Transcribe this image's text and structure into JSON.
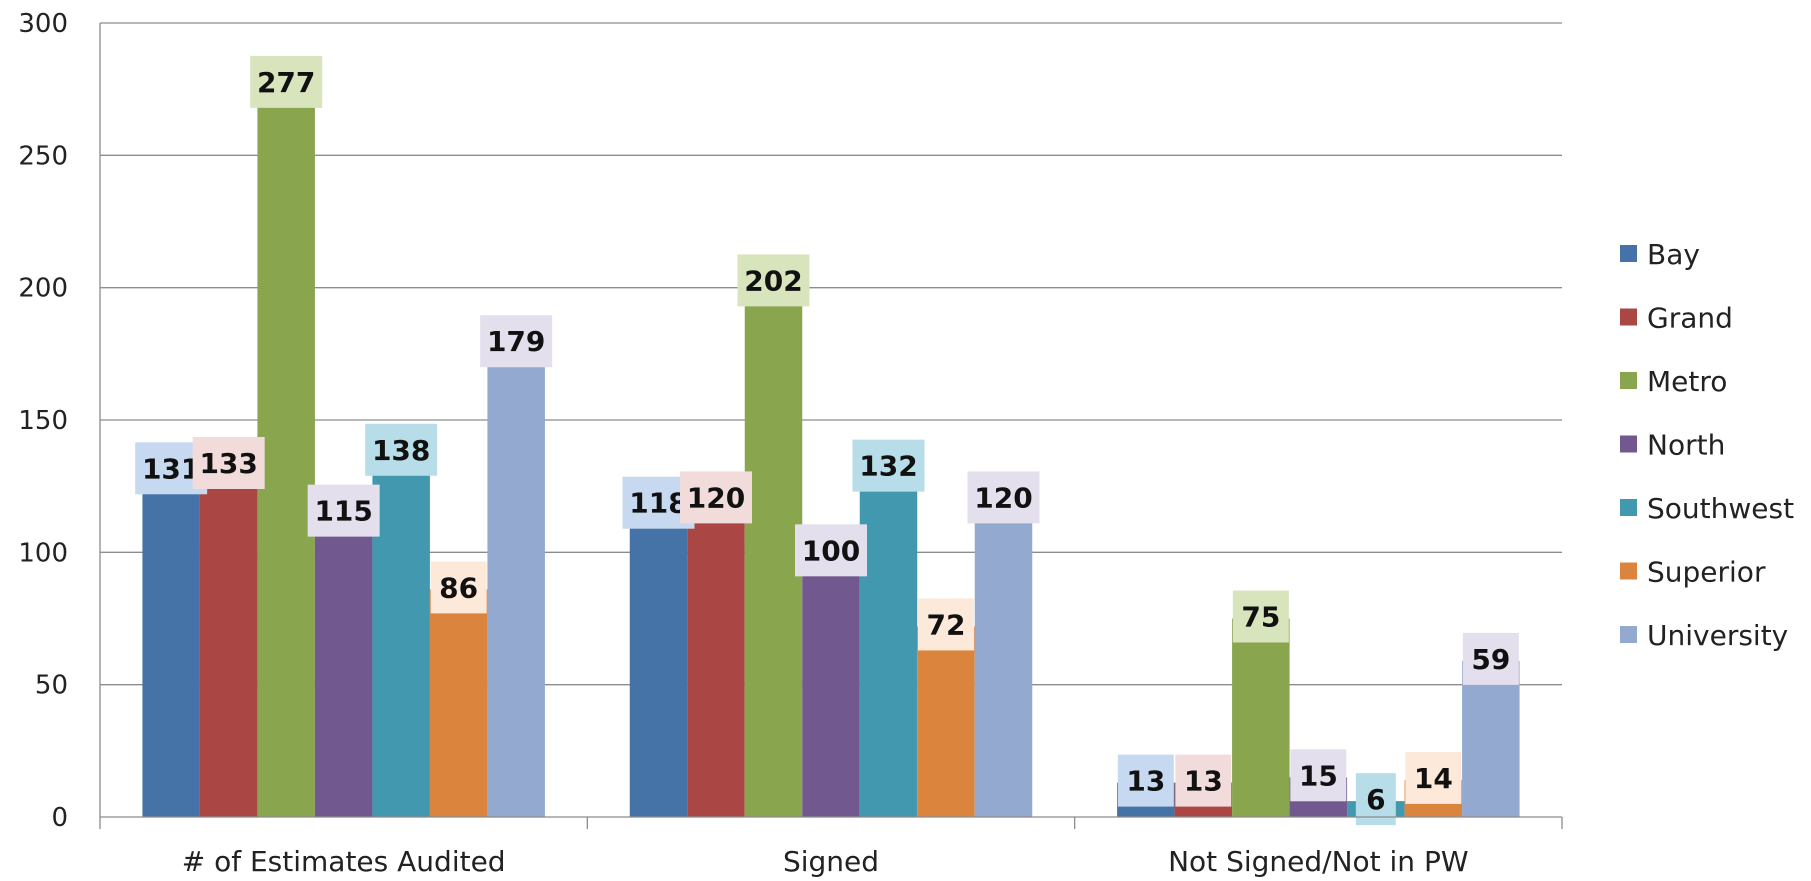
{
  "chart_data": {
    "type": "bar",
    "title": "",
    "xlabel": "",
    "ylabel": "",
    "ylim": [
      0,
      300
    ],
    "yticks": [
      0,
      50,
      100,
      150,
      200,
      250,
      300
    ],
    "grid": true,
    "legend_position": "right",
    "categories": [
      "# of Estimates Audited",
      "Signed",
      "Not Signed/Not in PW"
    ],
    "series": [
      {
        "name": "Bay",
        "color": "#4572A7",
        "label_bg": "#C6D9F0",
        "values": [
          131,
          118,
          13
        ]
      },
      {
        "name": "Grand",
        "color": "#AA4643",
        "label_bg": "#F2DCDB",
        "values": [
          133,
          120,
          13
        ]
      },
      {
        "name": "Metro",
        "color": "#89A54E",
        "label_bg": "#D7E4BC",
        "values": [
          277,
          202,
          75
        ]
      },
      {
        "name": "North",
        "color": "#71588F",
        "label_bg": "#E4DFEC",
        "values": [
          115,
          100,
          15
        ]
      },
      {
        "name": "Southwest",
        "color": "#4198AF",
        "label_bg": "#B7DEE8",
        "values": [
          138,
          132,
          6
        ]
      },
      {
        "name": "Superior",
        "color": "#DB843D",
        "label_bg": "#FDE9D9",
        "values": [
          86,
          72,
          14
        ]
      },
      {
        "name": "University",
        "color": "#93A9CF",
        "label_bg": "#E4DFEC",
        "values": [
          179,
          120,
          59
        ]
      }
    ]
  }
}
